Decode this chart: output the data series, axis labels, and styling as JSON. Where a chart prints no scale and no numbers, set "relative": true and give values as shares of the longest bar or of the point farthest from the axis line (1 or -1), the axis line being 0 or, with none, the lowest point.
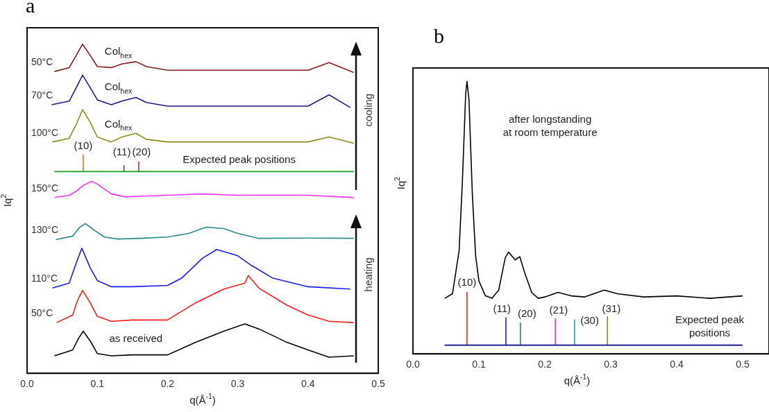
{
  "chart_data": [
    {
      "type": "line",
      "title": "a",
      "xlabel": "q(Å$^{-1}$)",
      "ylabel": "Iq$^{2}$",
      "relative": true,
      "xlim": [
        0,
        0.5
      ],
      "xticks": [
        {
          "value": 0,
          "label": "0.0"
        },
        0.1,
        0.2,
        0.3,
        0.4,
        0.5
      ],
      "grid": false,
      "legend": false,
      "series": [
        {
          "name": "50°C",
          "color": "#8b1a1a",
          "x": [
            0.039,
            0.06,
            0.07,
            0.079,
            0.09,
            0.1,
            0.12,
            0.135,
            0.155,
            0.17,
            0.2,
            0.3,
            0.4,
            0.43,
            0.465
          ],
          "values": [
            0.917,
            0.929,
            0.966,
            1.0,
            0.966,
            0.932,
            0.929,
            0.94,
            0.947,
            0.932,
            0.921,
            0.921,
            0.921,
            0.944,
            0.914
          ]
        },
        {
          "name": "70°C",
          "color": "#1a1a8b",
          "x": [
            0.035,
            0.06,
            0.07,
            0.079,
            0.09,
            0.1,
            0.12,
            0.135,
            0.155,
            0.17,
            0.2,
            0.3,
            0.4,
            0.43,
            0.46
          ],
          "values": [
            0.816,
            0.827,
            0.868,
            0.906,
            0.868,
            0.831,
            0.816,
            0.827,
            0.838,
            0.823,
            0.812,
            0.812,
            0.812,
            0.846,
            0.808
          ]
        },
        {
          "name": "100°C",
          "color": "#8b8b1a",
          "x": [
            0.036,
            0.06,
            0.07,
            0.079,
            0.09,
            0.1,
            0.12,
            0.135,
            0.155,
            0.17,
            0.2,
            0.3,
            0.4,
            0.43,
            0.465
          ],
          "values": [
            0.703,
            0.714,
            0.756,
            0.801,
            0.763,
            0.718,
            0.703,
            0.718,
            0.729,
            0.711,
            0.703,
            0.703,
            0.703,
            0.718,
            0.699
          ]
        },
        {
          "color": "#1a9a1a",
          "x": [
            0.039,
            0.465
          ],
          "values": [
            0.613,
            0.613
          ]
        },
        {
          "color": "#ff6a1a",
          "x": [
            0.08,
            0.08
          ],
          "values": [
            0.613,
            0.665
          ]
        },
        {
          "color": "#7030a0",
          "x": [
            0.138,
            0.138
          ],
          "values": [
            0.613,
            0.632
          ]
        },
        {
          "color": "#8a2be2",
          "x": [
            0.159,
            0.159
          ],
          "values": [
            0.613,
            0.643
          ]
        },
        {
          "name": "150°C",
          "color": "#ff33ff",
          "x": [
            0.039,
            0.06,
            0.07,
            0.08,
            0.092,
            0.1,
            0.12,
            0.14,
            0.17,
            0.2,
            0.25,
            0.3,
            0.4,
            0.465
          ],
          "values": [
            0.534,
            0.541,
            0.553,
            0.571,
            0.583,
            0.575,
            0.545,
            0.536,
            0.539,
            0.541,
            0.545,
            0.541,
            0.541,
            0.534
          ]
        },
        {
          "name": "130°C",
          "color": "#2a8a8a",
          "x": [
            0.041,
            0.065,
            0.075,
            0.083,
            0.095,
            0.11,
            0.13,
            0.16,
            0.2,
            0.23,
            0.255,
            0.28,
            0.3,
            0.33,
            0.4,
            0.465
          ],
          "values": [
            0.406,
            0.417,
            0.444,
            0.455,
            0.436,
            0.414,
            0.408,
            0.41,
            0.414,
            0.425,
            0.444,
            0.44,
            0.425,
            0.41,
            0.411,
            0.41
          ]
        },
        {
          "name": "110°C",
          "color": "#1a1aff",
          "x": [
            0.036,
            0.06,
            0.07,
            0.078,
            0.09,
            0.1,
            0.12,
            0.15,
            0.2,
            0.22,
            0.25,
            0.27,
            0.3,
            0.32,
            0.35,
            0.4,
            0.46
          ],
          "values": [
            0.259,
            0.274,
            0.335,
            0.38,
            0.32,
            0.282,
            0.263,
            0.263,
            0.267,
            0.289,
            0.35,
            0.376,
            0.357,
            0.327,
            0.289,
            0.263,
            0.256
          ]
        },
        {
          "name": "50°C",
          "color": "#ff1a1a",
          "x": [
            0.042,
            0.065,
            0.072,
            0.079,
            0.09,
            0.1,
            0.12,
            0.15,
            0.2,
            0.24,
            0.28,
            0.31,
            0.315,
            0.33,
            0.37,
            0.4,
            0.43,
            0.465
          ],
          "values": [
            0.154,
            0.177,
            0.222,
            0.252,
            0.214,
            0.173,
            0.158,
            0.162,
            0.162,
            0.214,
            0.256,
            0.274,
            0.297,
            0.259,
            0.207,
            0.177,
            0.158,
            0.154
          ]
        },
        {
          "color": "#000000",
          "x": [
            0.039,
            0.065,
            0.073,
            0.08,
            0.09,
            0.1,
            0.12,
            0.15,
            0.2,
            0.24,
            0.28,
            0.31,
            0.33,
            0.37,
            0.4,
            0.43,
            0.465
          ],
          "values": [
            0.053,
            0.071,
            0.105,
            0.128,
            0.098,
            0.06,
            0.053,
            0.056,
            0.056,
            0.094,
            0.128,
            0.15,
            0.135,
            0.094,
            0.071,
            0.049,
            0.053
          ]
        }
      ],
      "annotations": [
        "Col$_{hex}$",
        "Col$_{hex}$",
        "Col$_{hex}$",
        "(10)",
        "(11)",
        "(20)",
        "Expected peak positions",
        "as received",
        "cooling",
        "heating"
      ]
    },
    {
      "type": "line",
      "title": "b",
      "xlabel": "q(Å$^{-1}$)",
      "ylabel": "Iq$^{2}$",
      "relative": true,
      "xlim": [
        0,
        0.54
      ],
      "xticks": [
        {
          "value": 0,
          "label": "0.0"
        },
        0.1,
        0.2,
        0.3,
        0.4,
        0.5
      ],
      "grid": false,
      "legend": false,
      "series": [
        {
          "color": "#000000",
          "x": [
            0.048,
            0.06,
            0.07,
            0.075,
            0.08,
            0.082,
            0.085,
            0.09,
            0.095,
            0.1,
            0.11,
            0.12,
            0.13,
            0.14,
            0.145,
            0.155,
            0.162,
            0.17,
            0.18,
            0.19,
            0.2,
            0.22,
            0.24,
            0.26,
            0.29,
            0.31,
            0.35,
            0.4,
            0.45,
            0.5
          ],
          "values": [
            0.204,
            0.221,
            0.379,
            0.634,
            0.957,
            1.0,
            0.932,
            0.591,
            0.362,
            0.268,
            0.213,
            0.204,
            0.234,
            0.353,
            0.374,
            0.345,
            0.357,
            0.294,
            0.226,
            0.204,
            0.209,
            0.226,
            0.213,
            0.209,
            0.234,
            0.221,
            0.209,
            0.213,
            0.204,
            0.213
          ]
        },
        {
          "color": "#000080",
          "x": [
            0.048,
            0.5
          ],
          "values": [
            0.032,
            0.032
          ]
        },
        {
          "color": "#ff1a1a",
          "x": [
            0.082,
            0.082
          ],
          "values": [
            0.032,
            0.227
          ]
        },
        {
          "color": "#1a1aff",
          "x": [
            0.141,
            0.141
          ],
          "values": [
            0.032,
            0.134
          ]
        },
        {
          "color": "#1a8a8a",
          "x": [
            0.163,
            0.163
          ],
          "values": [
            0.032,
            0.115
          ]
        },
        {
          "color": "#ff1aff",
          "x": [
            0.216,
            0.216
          ],
          "values": [
            0.032,
            0.13
          ]
        },
        {
          "color": "#1e90ff",
          "x": [
            0.245,
            0.245
          ],
          "values": [
            0.032,
            0.126
          ]
        },
        {
          "color": "#8b8b1a",
          "x": [
            0.295,
            0.295
          ],
          "values": [
            0.032,
            0.138
          ]
        }
      ],
      "annotations": [
        "(10)",
        "(11)",
        "(20)",
        "(21)",
        "(30)",
        "(31)",
        "after longstanding\nat room temperature",
        "Expected peak\npositions"
      ]
    }
  ]
}
